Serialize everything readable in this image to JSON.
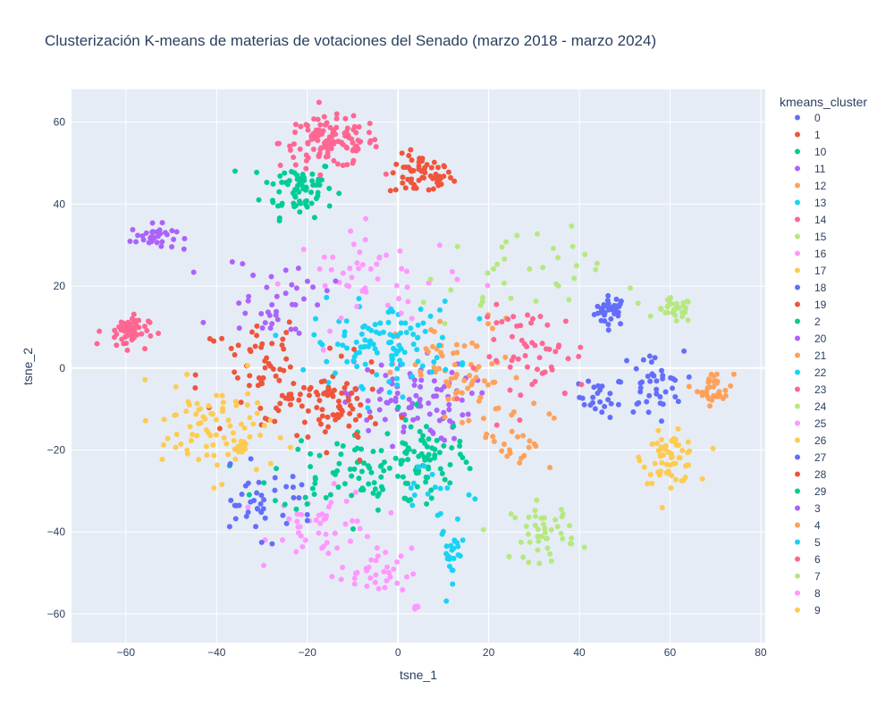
{
  "chart_data": {
    "type": "scatter",
    "title": "Clusterización K-means de materias de votaciones del Senado (marzo 2018 - marzo 2024)",
    "xlabel": "tsne_1",
    "ylabel": "tsne_2",
    "xlim": [
      -72,
      81
    ],
    "ylim": [
      -67,
      68
    ],
    "xticks": [
      -60,
      -40,
      -20,
      0,
      20,
      40,
      60,
      80
    ],
    "yticks": [
      -60,
      -40,
      -20,
      0,
      20,
      40,
      60
    ],
    "xtick_labels": [
      "−60",
      "−40",
      "−20",
      "0",
      "20",
      "40",
      "60",
      "80"
    ],
    "ytick_labels": [
      "−60",
      "−40",
      "−20",
      "0",
      "20",
      "40",
      "60"
    ],
    "grid": true,
    "legend_title": "kmeans_cluster",
    "legend_position": "right",
    "plot_bg": "#e5ecf6",
    "series": [
      {
        "name": "0",
        "color": "#636efa",
        "clusters": [
          {
            "cx": 47,
            "cy": 14,
            "sx": 1.8,
            "sy": 1.8,
            "n": 35
          },
          {
            "cx": 45,
            "cy": -7,
            "sx": 2.5,
            "sy": 2.5,
            "n": 25
          }
        ]
      },
      {
        "name": "1",
        "color": "#ef553b",
        "clusters": [
          {
            "cx": 5,
            "cy": 47,
            "sx": 3.5,
            "sy": 2.5,
            "n": 60
          }
        ]
      },
      {
        "name": "10",
        "color": "#00cc96",
        "clusters": [
          {
            "cx": -22,
            "cy": 44,
            "sx": 4,
            "sy": 3.5,
            "n": 70
          }
        ]
      },
      {
        "name": "11",
        "color": "#ab63fa",
        "clusters": [
          {
            "cx": -54,
            "cy": 32,
            "sx": 2.5,
            "sy": 1.5,
            "n": 35
          }
        ]
      },
      {
        "name": "12",
        "color": "#ffa15a",
        "clusters": [
          {
            "cx": 70,
            "cy": -5,
            "sx": 2,
            "sy": 2,
            "n": 35
          }
        ]
      },
      {
        "name": "13",
        "color": "#19d3f3",
        "clusters": [
          {
            "cx": 12,
            "cy": -45,
            "sx": 1.3,
            "sy": 3.5,
            "n": 25
          }
        ]
      },
      {
        "name": "14",
        "color": "#ff6692",
        "clusters": [
          {
            "cx": -15,
            "cy": 55,
            "sx": 5.5,
            "sy": 3,
            "n": 120
          }
        ]
      },
      {
        "name": "15",
        "color": "#b6e880",
        "clusters": [
          {
            "cx": 61,
            "cy": 14,
            "sx": 2,
            "sy": 1.5,
            "n": 30
          }
        ]
      },
      {
        "name": "16",
        "color": "#ff97ff",
        "clusters": [
          {
            "cx": -16,
            "cy": -38,
            "sx": 6,
            "sy": 4,
            "n": 45
          }
        ]
      },
      {
        "name": "17",
        "color": "#fecb52",
        "clusters": [
          {
            "cx": 60,
            "cy": -22,
            "sx": 3,
            "sy": 3,
            "n": 65
          }
        ]
      },
      {
        "name": "18",
        "color": "#636efa",
        "clusters": [
          {
            "cx": 56,
            "cy": -4,
            "sx": 3.5,
            "sy": 4,
            "n": 40
          }
        ]
      },
      {
        "name": "19",
        "color": "#ef553b",
        "clusters": [
          {
            "cx": -28,
            "cy": -2,
            "sx": 8,
            "sy": 8,
            "n": 70
          }
        ]
      },
      {
        "name": "2",
        "color": "#00cc96",
        "clusters": [
          {
            "cx": -8,
            "cy": -25,
            "sx": 10,
            "sy": 5,
            "n": 90
          }
        ]
      },
      {
        "name": "20",
        "color": "#ab63fa",
        "clusters": [
          {
            "cx": 2,
            "cy": -8,
            "sx": 7,
            "sy": 5,
            "n": 90
          }
        ]
      },
      {
        "name": "21",
        "color": "#ffa15a",
        "clusters": [
          {
            "cx": 14,
            "cy": -2,
            "sx": 7,
            "sy": 7,
            "n": 70
          }
        ]
      },
      {
        "name": "22",
        "color": "#19d3f3",
        "clusters": [
          {
            "cx": -3,
            "cy": 6,
            "sx": 8,
            "sy": 5,
            "n": 110
          }
        ]
      },
      {
        "name": "23",
        "color": "#ff6692",
        "clusters": [
          {
            "cx": 30,
            "cy": 3,
            "sx": 6,
            "sy": 6,
            "n": 55
          }
        ]
      },
      {
        "name": "24",
        "color": "#b6e880",
        "clusters": [
          {
            "cx": 32,
            "cy": -40,
            "sx": 3.5,
            "sy": 3.5,
            "n": 45
          }
        ]
      },
      {
        "name": "25",
        "color": "#ff97ff",
        "clusters": [
          {
            "cx": -5,
            "cy": 22,
            "sx": 9,
            "sy": 6,
            "n": 50
          }
        ]
      },
      {
        "name": "26",
        "color": "#fecb52",
        "clusters": [
          {
            "cx": -40,
            "cy": -15,
            "sx": 6,
            "sy": 6,
            "n": 60
          }
        ]
      },
      {
        "name": "27",
        "color": "#636efa",
        "clusters": [
          {
            "cx": -30,
            "cy": -33,
            "sx": 6,
            "sy": 4,
            "n": 40
          }
        ]
      },
      {
        "name": "28",
        "color": "#ef553b",
        "clusters": [
          {
            "cx": -14,
            "cy": -10,
            "sx": 5,
            "sy": 5,
            "n": 70
          }
        ]
      },
      {
        "name": "29",
        "color": "#00cc96",
        "clusters": [
          {
            "cx": 6,
            "cy": -22,
            "sx": 4,
            "sy": 5,
            "n": 55
          }
        ]
      },
      {
        "name": "3",
        "color": "#ab63fa",
        "clusters": [
          {
            "cx": -27,
            "cy": 17,
            "sx": 6,
            "sy": 5,
            "n": 40
          }
        ]
      },
      {
        "name": "4",
        "color": "#ffa15a",
        "clusters": [
          {
            "cx": 26,
            "cy": -17,
            "sx": 4,
            "sy": 4,
            "n": 25
          }
        ]
      },
      {
        "name": "5",
        "color": "#19d3f3",
        "clusters": [
          {
            "cx": 8,
            "cy": -30,
            "sx": 6,
            "sy": 4,
            "n": 15
          }
        ]
      },
      {
        "name": "6",
        "color": "#ff6692",
        "clusters": [
          {
            "cx": -60,
            "cy": 9,
            "sx": 2.5,
            "sy": 2,
            "n": 50
          }
        ]
      },
      {
        "name": "7",
        "color": "#b6e880",
        "clusters": [
          {
            "cx": 25,
            "cy": 22,
            "sx": 10,
            "sy": 6,
            "n": 35
          }
        ]
      },
      {
        "name": "8",
        "color": "#ff97ff",
        "clusters": [
          {
            "cx": -5,
            "cy": -50,
            "sx": 4,
            "sy": 3,
            "n": 35
          },
          {
            "cx": 4,
            "cy": -59,
            "sx": 0.5,
            "sy": 0.5,
            "n": 5
          }
        ]
      },
      {
        "name": "9",
        "color": "#fecb52",
        "clusters": [
          {
            "cx": -35,
            "cy": -19,
            "sx": 1.5,
            "sy": 1.5,
            "n": 20
          },
          {
            "cx": -46,
            "cy": -12,
            "sx": 4,
            "sy": 5,
            "n": 15
          }
        ]
      }
    ]
  }
}
